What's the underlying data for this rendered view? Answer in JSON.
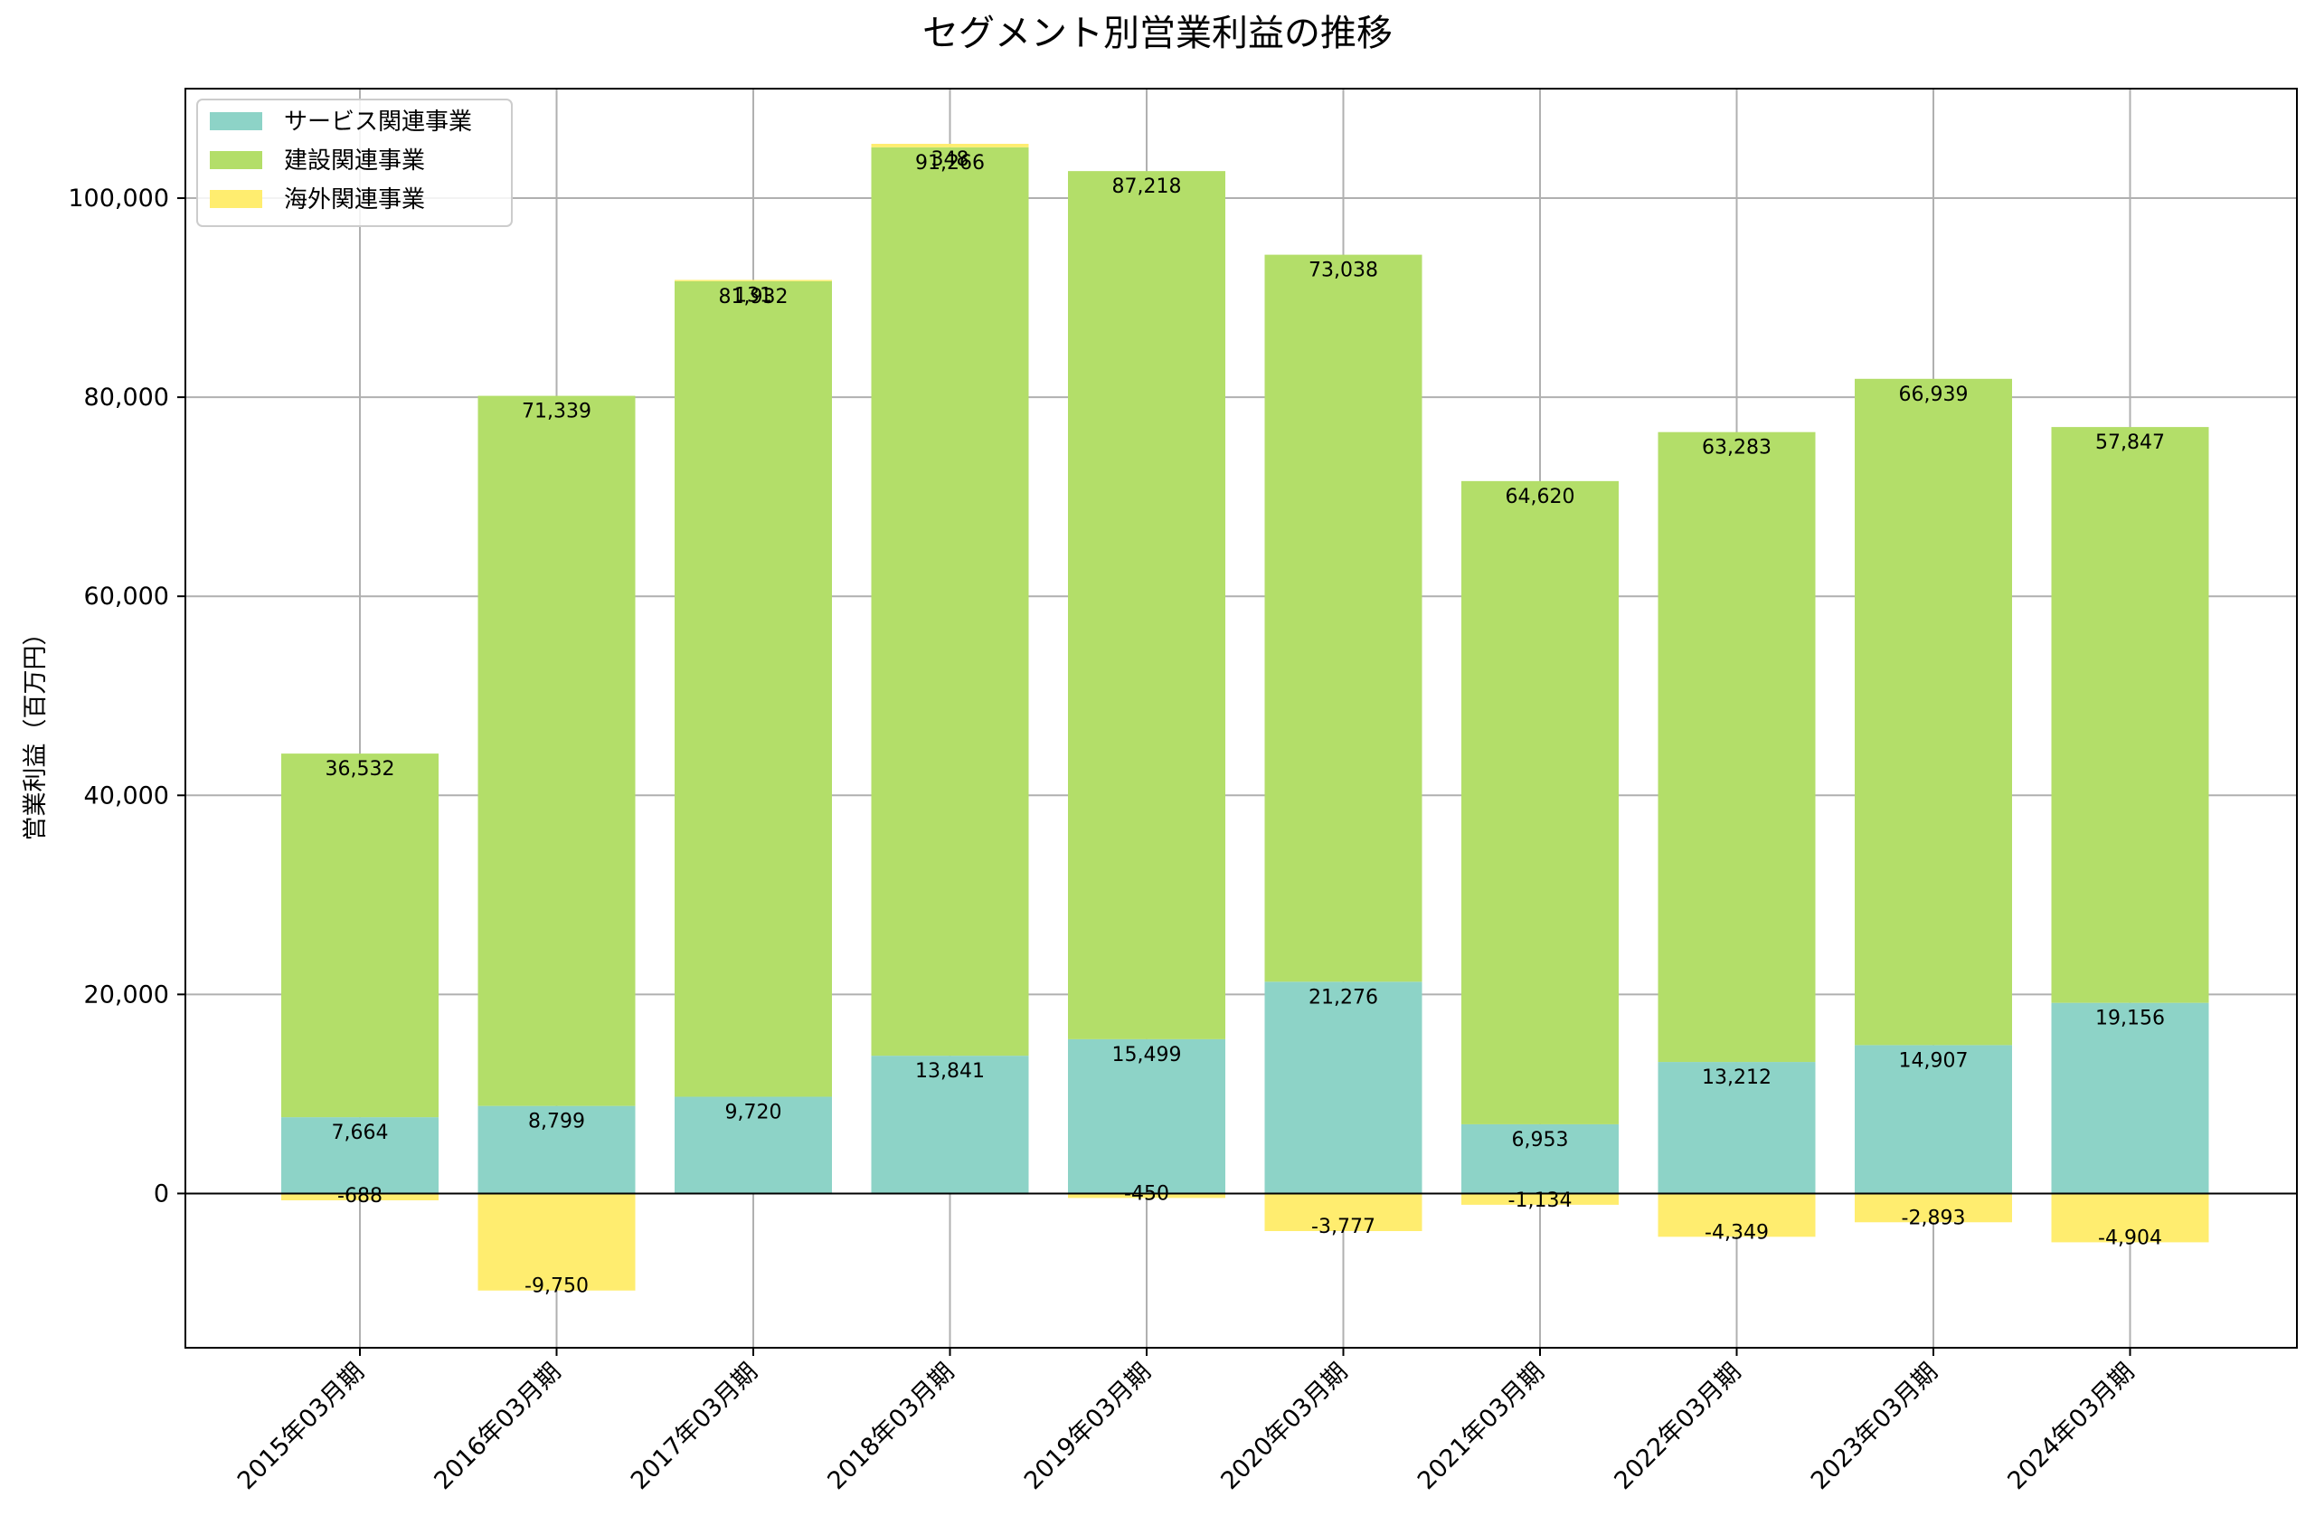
{
  "chart_data": {
    "type": "bar",
    "stacked": true,
    "title": "セグメント別営業利益の推移",
    "xlabel": "",
    "ylabel": "営業利益（百万円）",
    "ylim": [
      -15500,
      111000
    ],
    "yticks": [
      0,
      20000,
      40000,
      60000,
      80000,
      100000
    ],
    "ytick_labels": [
      "0",
      "20,000",
      "40,000",
      "60,000",
      "80,000",
      "100,000"
    ],
    "grid": true,
    "legend_position": "top-left",
    "categories": [
      "2015年03月期",
      "2016年03月期",
      "2017年03月期",
      "2018年03月期",
      "2019年03月期",
      "2020年03月期",
      "2021年03月期",
      "2022年03月期",
      "2023年03月期",
      "2024年03月期"
    ],
    "series": [
      {
        "name": "サービス関連事業",
        "color": "#8dd3c7",
        "values": [
          7664,
          8799,
          9720,
          13841,
          15499,
          21276,
          6953,
          13212,
          14907,
          19156
        ],
        "labels": [
          "7,664",
          "8,799",
          "9,720",
          "13,841",
          "15,499",
          "21,276",
          "6,953",
          "13,212",
          "14,907",
          "19,156"
        ]
      },
      {
        "name": "建設関連事業",
        "color": "#b3de69",
        "values": [
          36532,
          71339,
          81932,
          91266,
          87218,
          73038,
          64620,
          63283,
          66939,
          57847
        ],
        "labels": [
          "36,532",
          "71,339",
          "81,932",
          "91,266",
          "87,218",
          "73,038",
          "64,620",
          "63,283",
          "66,939",
          "57,847"
        ]
      },
      {
        "name": "海外関連事業",
        "color": "#ffed6f",
        "values": [
          -688,
          -9750,
          131,
          348,
          -450,
          -3777,
          -1134,
          -4349,
          -2893,
          -4904
        ],
        "labels": [
          "-688",
          "-9,750",
          "131",
          "348",
          "-450",
          "-3,777",
          "-1,134",
          "-4,349",
          "-2,893",
          "-4,904"
        ]
      }
    ]
  }
}
